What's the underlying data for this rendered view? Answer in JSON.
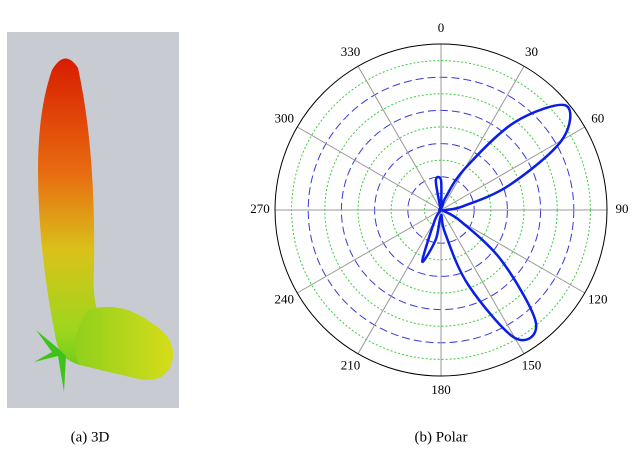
{
  "chart_data": {
    "type": "polar",
    "thetaticks": [
      0,
      30,
      60,
      90,
      120,
      150,
      180,
      210,
      240,
      270,
      300,
      330
    ],
    "rlim": [
      0,
      1
    ],
    "rticks": [
      0.1,
      0.2,
      0.3,
      0.4,
      0.5,
      0.6,
      0.7,
      0.8,
      0.9
    ],
    "grid": true,
    "series": [
      {
        "color": "#0a1ee6",
        "theta": [
          0,
          10,
          20,
          30,
          40,
          50,
          60,
          70,
          80,
          90,
          100,
          110,
          120,
          130,
          140,
          150,
          160,
          170,
          180,
          190,
          200,
          210,
          220,
          230,
          240,
          250,
          260,
          270,
          280,
          290,
          300,
          310,
          320,
          330,
          340,
          350
        ],
        "values": [
          0.18,
          0.02,
          0.08,
          0.29,
          0.69,
          0.98,
          0.84,
          0.44,
          0.14,
          0.03,
          0.01,
          0.02,
          0.14,
          0.48,
          0.89,
          0.89,
          0.48,
          0.14,
          0.03,
          0.18,
          0.33,
          0.08,
          0.01,
          0.01,
          0.01,
          0.01,
          0.01,
          0.01,
          0.01,
          0.01,
          0.01,
          0.01,
          0.01,
          0.01,
          0.01,
          0.18
        ]
      }
    ]
  },
  "captions": [
    "(a) 3D",
    "(b) Polar"
  ]
}
